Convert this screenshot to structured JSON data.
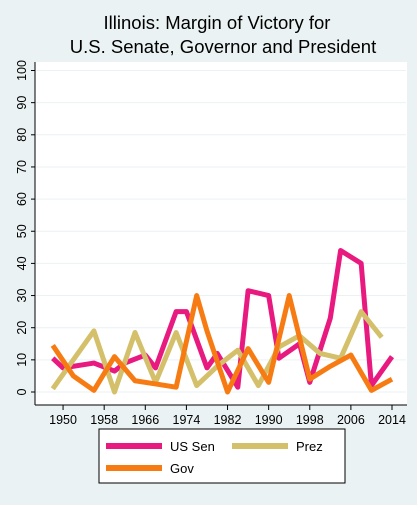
{
  "chart_data": {
    "type": "line",
    "title": "Illinois: Margin of Victory for",
    "subtitle": "U.S. Senate, Governor and President",
    "xlabel": "",
    "ylabel": "",
    "xlim": [
      1946,
      2014
    ],
    "ylim": [
      0,
      100
    ],
    "x_ticks": [
      1950,
      1958,
      1966,
      1974,
      1982,
      1990,
      1998,
      2006,
      2014
    ],
    "y_ticks": [
      0,
      10,
      20,
      30,
      40,
      50,
      60,
      70,
      80,
      90,
      100
    ],
    "grid": true,
    "legend": "bottom",
    "series": [
      {
        "name": "US Sen",
        "color": "#e8197f",
        "x": [
          1948,
          1950,
          1954,
          1956,
          1960,
          1962,
          1966,
          1968,
          1972,
          1974,
          1978,
          1980,
          1984,
          1986,
          1990,
          1992,
          1996,
          1998,
          2002,
          2004,
          2008,
          2010,
          2014
        ],
        "y": [
          10.5,
          7.5,
          8.5,
          9.0,
          6.5,
          9.0,
          11.5,
          7.5,
          25.0,
          25.0,
          7.5,
          12.0,
          1.5,
          31.5,
          30.0,
          10.5,
          15.0,
          3.0,
          23.0,
          44.0,
          40.0,
          2.0,
          11.0
        ]
      },
      {
        "name": "Prez",
        "color": "#d4c06b",
        "x": [
          1948,
          1952,
          1956,
          1960,
          1964,
          1968,
          1972,
          1976,
          1980,
          1984,
          1988,
          1992,
          1996,
          2000,
          2004,
          2008,
          2012
        ],
        "y": [
          1.0,
          10.0,
          19.0,
          0.0,
          18.5,
          3.0,
          18.5,
          2.0,
          8.0,
          13.0,
          2.0,
          14.0,
          17.5,
          12.0,
          10.5,
          25.0,
          17.0
        ]
      },
      {
        "name": "Gov",
        "color": "#f77b13",
        "x": [
          1948,
          1952,
          1956,
          1960,
          1964,
          1968,
          1972,
          1976,
          1978,
          1982,
          1986,
          1990,
          1994,
          1998,
          2002,
          2006,
          2010,
          2014
        ],
        "y": [
          14.5,
          5.0,
          0.5,
          11.0,
          3.5,
          2.5,
          1.5,
          30.0,
          19.0,
          0.0,
          13.5,
          3.0,
          30.0,
          4.0,
          8.0,
          11.5,
          0.5,
          4.0
        ]
      }
    ]
  }
}
